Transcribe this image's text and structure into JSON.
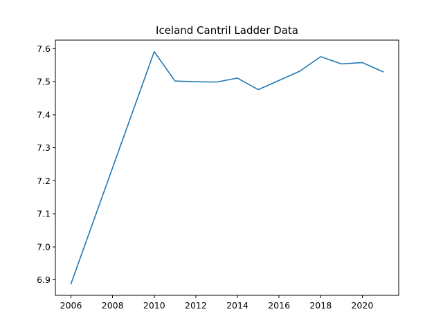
{
  "chart_data": {
    "type": "line",
    "title": "Iceland Cantril Ladder Data",
    "xlabel": "",
    "ylabel": "",
    "xlim": [
      2005.25,
      2021.75
    ],
    "ylim": [
      6.853,
      7.626
    ],
    "x_ticks": [
      2006,
      2008,
      2010,
      2012,
      2014,
      2016,
      2018,
      2020
    ],
    "y_ticks": [
      6.9,
      7.0,
      7.1,
      7.2,
      7.3,
      7.4,
      7.5,
      7.6
    ],
    "grid": false,
    "legend": "none",
    "line_color": "#1f77b4",
    "series": [
      {
        "x": [
          2006,
          2010,
          2011,
          2012,
          2013,
          2014,
          2015,
          2016,
          2017,
          2018,
          2019,
          2020,
          2021
        ],
        "values": [
          6.888,
          7.591,
          7.502,
          7.5,
          7.499,
          7.511,
          7.476,
          7.504,
          7.532,
          7.576,
          7.554,
          7.558,
          7.53
        ]
      }
    ]
  }
}
